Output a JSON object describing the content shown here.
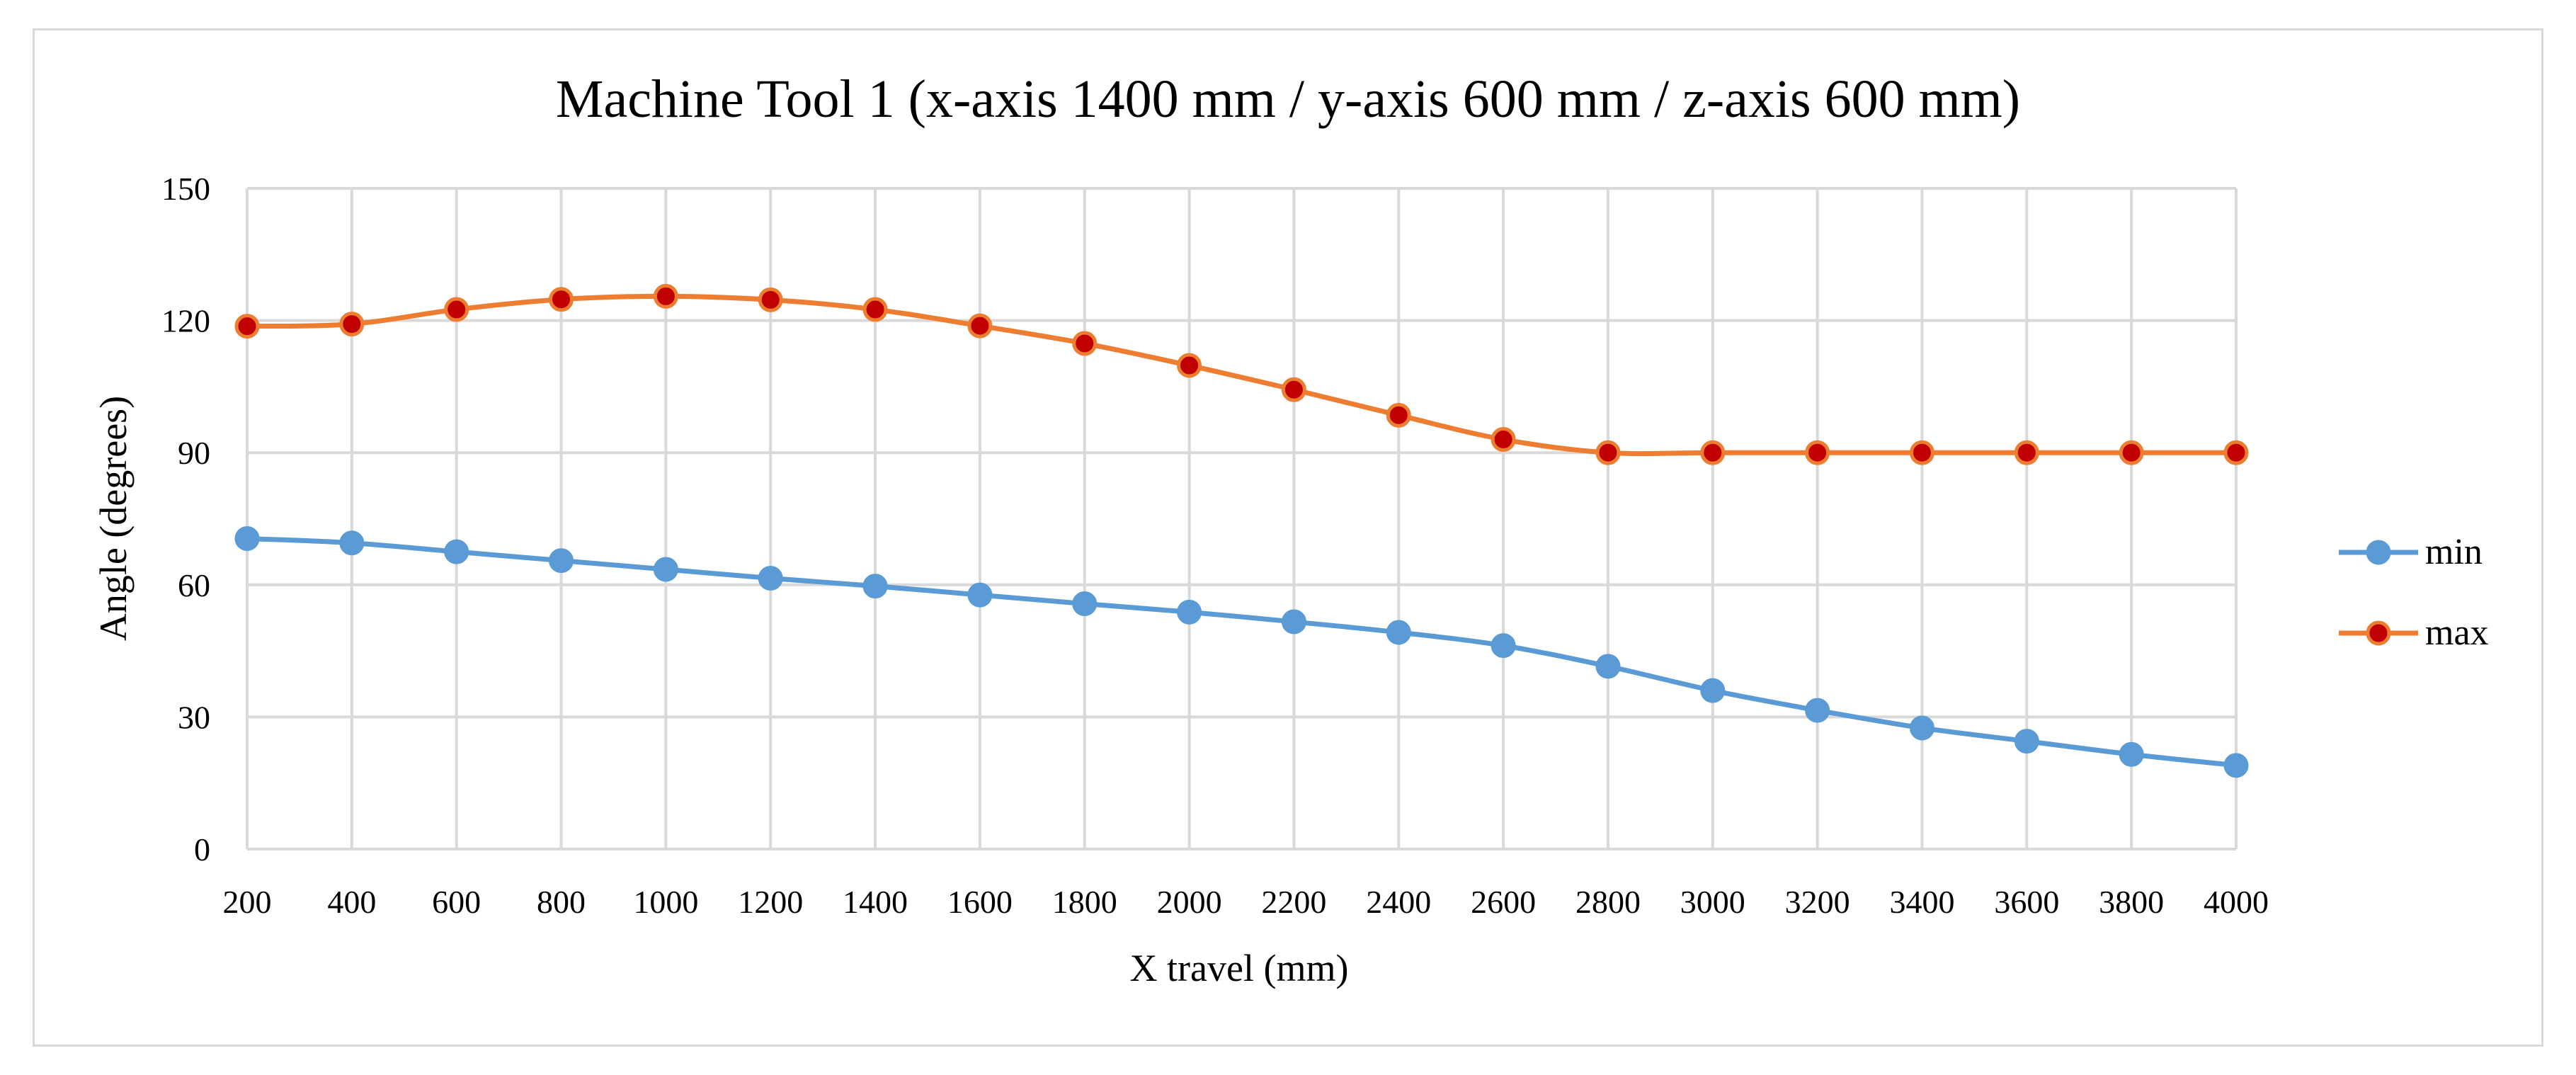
{
  "chart_data": {
    "type": "line",
    "title": "Machine Tool 1 (x-axis 1400 mm / y-axis 600 mm / z-axis 600 mm)",
    "xlabel": "X travel (mm)",
    "ylabel": "Angle (degrees)",
    "categories": [
      "200",
      "400",
      "600",
      "800",
      "1000",
      "1200",
      "1400",
      "1600",
      "1800",
      "2000",
      "2200",
      "2400",
      "2600",
      "2800",
      "3000",
      "3200",
      "3400",
      "3600",
      "3800",
      "4000"
    ],
    "ylim": [
      0,
      150
    ],
    "yticks": [
      "0",
      "30",
      "60",
      "90",
      "120",
      "150"
    ],
    "grid": true,
    "legend_position": "right",
    "series": [
      {
        "name": "min",
        "color": "#5b9bd5",
        "marker_fill": "#5b9bd5",
        "values": [
          70.5,
          69.5,
          67.5,
          65.5,
          63.5,
          61.5,
          59.7,
          57.7,
          55.7,
          53.8,
          51.6,
          49.2,
          46.2,
          41.5,
          36.0,
          31.5,
          27.5,
          24.5,
          21.5,
          19.0
        ]
      },
      {
        "name": "max",
        "color": "#ed7d31",
        "marker_fill": "#c00000",
        "values": [
          118.7,
          119.2,
          122.5,
          124.8,
          125.5,
          124.7,
          122.5,
          118.8,
          114.8,
          109.8,
          104.3,
          98.5,
          93.0,
          90.0,
          90.0,
          90.0,
          90.0,
          90.0,
          90.0,
          90.0
        ]
      }
    ]
  }
}
